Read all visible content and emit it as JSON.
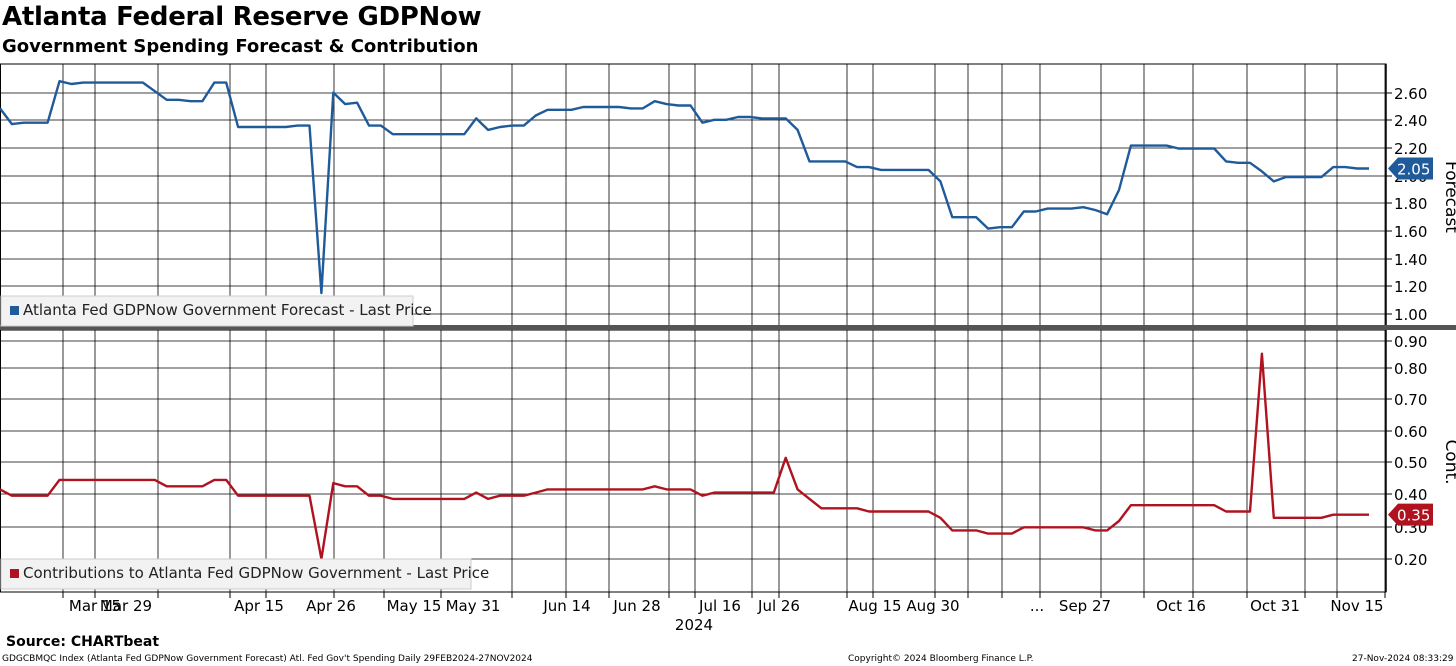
{
  "title": "Atlanta Federal Reserve GDPNow",
  "subtitle": "Government Spending Forecast & Contribution",
  "source": "Source: CHARTbeat",
  "footer": {
    "left": "GDGCBMQC Index (Atlanta Fed GDPNow Government Forecast) Atl. Fed Gov't Spending  Daily 29FEB2024-27NOV2024",
    "center": "Copyright© 2024 Bloomberg Finance L.P.",
    "right": "27-Nov-2024 08:33:29"
  },
  "colors": {
    "forecast": "#1f5b9a",
    "contribution": "#b0131f"
  },
  "chart_data": [
    {
      "type": "line",
      "ylabel": "Forecast",
      "ylim": [
        0.95,
        2.78
      ],
      "yticks": [
        "2.60",
        "2.40",
        "2.20",
        "2.00",
        "1.80",
        "1.60",
        "1.40",
        "1.20",
        "1.00"
      ],
      "legend": "Atlanta Fed GDPNow Government Forecast - Last Price",
      "legend_position": "bottom-left",
      "last_value_label": "2.05",
      "series": [
        {
          "name": "Atlanta Fed GDPNow Government Forecast - Last Price",
          "values": [
            2.47,
            2.36,
            2.37,
            2.37,
            2.37,
            2.66,
            2.64,
            2.65,
            2.65,
            2.65,
            2.65,
            2.65,
            2.65,
            2.59,
            2.53,
            2.53,
            2.52,
            2.52,
            2.65,
            2.65,
            2.34,
            2.34,
            2.34,
            2.34,
            2.34,
            2.35,
            2.35,
            1.18,
            2.58,
            2.5,
            2.51,
            2.35,
            2.35,
            2.29,
            2.29,
            2.29,
            2.29,
            2.29,
            2.29,
            2.29,
            2.4,
            2.32,
            2.34,
            2.35,
            2.35,
            2.42,
            2.46,
            2.46,
            2.46,
            2.48,
            2.48,
            2.48,
            2.48,
            2.47,
            2.47,
            2.52,
            2.5,
            2.49,
            2.49,
            2.37,
            2.39,
            2.39,
            2.41,
            2.41,
            2.4,
            2.4,
            2.4,
            2.32,
            2.1,
            2.1,
            2.1,
            2.1,
            2.06,
            2.06,
            2.04,
            2.04,
            2.04,
            2.04,
            2.04,
            1.96,
            1.71,
            1.71,
            1.71,
            1.63,
            1.64,
            1.64,
            1.75,
            1.75,
            1.77,
            1.77,
            1.77,
            1.78,
            1.76,
            1.73,
            1.9,
            2.21,
            2.21,
            2.21,
            2.21,
            2.19,
            2.19,
            2.19,
            2.19,
            2.1,
            2.09,
            2.09,
            2.03,
            1.96,
            1.99,
            1.99,
            1.99,
            1.99,
            2.06,
            2.06,
            2.05,
            2.05
          ]
        }
      ]
    },
    {
      "type": "line",
      "ylabel": "Cont.",
      "ylim": [
        0.105,
        0.935
      ],
      "yticks": [
        "0.90",
        "0.80",
        "0.70",
        "0.60",
        "0.50",
        "0.40",
        "0.30",
        "0.20"
      ],
      "legend": "Contributions to Atlanta Fed GDPNow Government - Last Price",
      "legend_position": "bottom-left",
      "last_value_label": "0.35",
      "series": [
        {
          "name": "Contributions to Atlanta Fed GDPNow Government - Last Price",
          "values": [
            0.43,
            0.41,
            0.41,
            0.41,
            0.41,
            0.46,
            0.46,
            0.46,
            0.46,
            0.46,
            0.46,
            0.46,
            0.46,
            0.46,
            0.44,
            0.44,
            0.44,
            0.44,
            0.46,
            0.46,
            0.41,
            0.41,
            0.41,
            0.41,
            0.41,
            0.41,
            0.41,
            0.21,
            0.45,
            0.44,
            0.44,
            0.41,
            0.41,
            0.4,
            0.4,
            0.4,
            0.4,
            0.4,
            0.4,
            0.4,
            0.42,
            0.4,
            0.41,
            0.41,
            0.41,
            0.42,
            0.43,
            0.43,
            0.43,
            0.43,
            0.43,
            0.43,
            0.43,
            0.43,
            0.43,
            0.44,
            0.43,
            0.43,
            0.43,
            0.41,
            0.42,
            0.42,
            0.42,
            0.42,
            0.42,
            0.42,
            0.53,
            0.43,
            0.4,
            0.37,
            0.37,
            0.37,
            0.37,
            0.36,
            0.36,
            0.36,
            0.36,
            0.36,
            0.36,
            0.34,
            0.3,
            0.3,
            0.3,
            0.29,
            0.29,
            0.29,
            0.31,
            0.31,
            0.31,
            0.31,
            0.31,
            0.31,
            0.3,
            0.3,
            0.33,
            0.38,
            0.38,
            0.38,
            0.38,
            0.38,
            0.38,
            0.38,
            0.38,
            0.36,
            0.36,
            0.36,
            0.86,
            0.34,
            0.34,
            0.34,
            0.34,
            0.34,
            0.35,
            0.35,
            0.35,
            0.35
          ]
        }
      ]
    }
  ],
  "x_axis": {
    "year_label": "2024",
    "tick_labels": [
      "Mar 15",
      "Mar 29",
      "Apr 15",
      "Apr 26",
      "May 15",
      "May 31",
      "Jun 14",
      "Jun 28",
      "Jul 16",
      "Jul 26",
      "Aug 15",
      "Aug 30",
      "...",
      "Sep 27",
      "Oct 16",
      "Oct 31",
      "Nov 15"
    ]
  }
}
